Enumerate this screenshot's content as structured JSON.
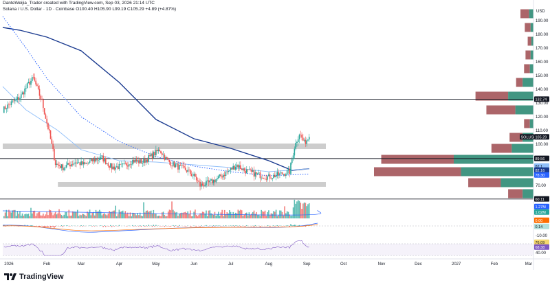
{
  "header": {
    "credit": "DanteWeijia_Trader created with TradingView.com, Sep 03, 2026 21:14 UTC",
    "symbol_line": "Solana / U.S. Dollar · 1D · Coinbase  O100.40  H105.90  L99.19  C105.29  +4.89 (+4.87%)"
  },
  "footer": {
    "brand": "TradingView",
    "logo_icon": "tradingview-logo-icon"
  },
  "colors": {
    "bull": "#26a69a",
    "bear": "#ef5350",
    "sma200": "#1a3a8f",
    "ema_dotted": "#2962ff",
    "sma_light": "#90bff9",
    "vp_up": "#2e8b74",
    "vp_down": "#9e4a4f",
    "zone": "#c8c8c8",
    "rsi_line": "#7e57c2"
  },
  "chart_data": {
    "type": "candlestick",
    "symbol": "Solana / U.S. Dollar · 1D · Coinbase",
    "ohlc_last": {
      "open": 100.4,
      "high": 105.9,
      "low": 99.19,
      "close": 105.29,
      "change": 4.89,
      "change_pct": 4.87
    },
    "x_axis": {
      "ticks": [
        "2026",
        "Feb",
        "Mar",
        "Apr",
        "May",
        "Jun",
        "Jul",
        "Aug",
        "Sep",
        "Oct",
        "Nov",
        "Dec",
        "2027",
        "Feb",
        "Mar"
      ]
    },
    "y_axis": {
      "unit": "USD",
      "ticks": [
        190,
        180,
        170,
        160,
        150,
        140,
        130,
        120,
        110,
        100,
        90,
        80,
        70
      ],
      "ylim": [
        55,
        198
      ]
    },
    "price_path": [
      [
        "2025-12-27",
        125
      ],
      [
        "2026-01-03",
        130
      ],
      [
        "2026-01-10",
        134
      ],
      [
        "2026-01-17",
        144
      ],
      [
        "2026-01-21",
        148
      ],
      [
        "2026-01-28",
        131
      ],
      [
        "2026-02-03",
        108
      ],
      [
        "2026-02-08",
        86
      ],
      [
        "2026-02-14",
        83
      ],
      [
        "2026-02-24",
        87
      ],
      [
        "2026-03-04",
        85
      ],
      [
        "2026-03-10",
        88
      ],
      [
        "2026-03-18",
        90
      ],
      [
        "2026-03-26",
        83
      ],
      [
        "2026-04-04",
        84
      ],
      [
        "2026-04-12",
        88
      ],
      [
        "2026-04-20",
        87
      ],
      [
        "2026-04-28",
        92
      ],
      [
        "2026-05-04",
        96
      ],
      [
        "2026-05-10",
        88
      ],
      [
        "2026-05-18",
        84
      ],
      [
        "2026-05-26",
        81
      ],
      [
        "2026-06-02",
        76
      ],
      [
        "2026-06-06",
        70
      ],
      [
        "2026-06-14",
        72
      ],
      [
        "2026-06-22",
        76
      ],
      [
        "2026-06-30",
        81
      ],
      [
        "2026-07-06",
        85
      ],
      [
        "2026-07-12",
        81
      ],
      [
        "2026-07-22",
        78
      ],
      [
        "2026-08-01",
        76
      ],
      [
        "2026-08-10",
        78
      ],
      [
        "2026-08-18",
        80
      ],
      [
        "2026-08-22",
        98
      ],
      [
        "2026-08-26",
        108
      ],
      [
        "2026-08-30",
        101
      ],
      [
        "2026-09-03",
        105.29
      ]
    ],
    "moving_averages": [
      {
        "style": "solid-dark-blue",
        "current": 82.16,
        "points": [
          [
            "2025-12-27",
            185
          ],
          [
            "2026-01-10",
            183
          ],
          [
            "2026-02-01",
            178
          ],
          [
            "2026-03-01",
            168
          ],
          [
            "2026-04-01",
            145
          ],
          [
            "2026-05-01",
            118
          ],
          [
            "2026-06-01",
            104
          ],
          [
            "2026-07-01",
            97
          ],
          [
            "2026-08-01",
            88
          ],
          [
            "2026-08-20",
            81
          ],
          [
            "2026-09-03",
            82.16
          ]
        ]
      },
      {
        "style": "dotted-blue",
        "current": 78.3,
        "points": [
          [
            "2025-12-27",
            193
          ],
          [
            "2026-01-15",
            170
          ],
          [
            "2026-02-01",
            148
          ],
          [
            "2026-03-01",
            120
          ],
          [
            "2026-04-01",
            102
          ],
          [
            "2026-05-01",
            91
          ],
          [
            "2026-06-01",
            84
          ],
          [
            "2026-07-01",
            80
          ],
          [
            "2026-08-01",
            77
          ],
          [
            "2026-09-03",
            78.3
          ]
        ]
      },
      {
        "style": "solid-light-blue",
        "current": 82.1,
        "points": [
          [
            "2025-12-27",
            142
          ],
          [
            "2026-01-15",
            125
          ],
          [
            "2026-02-10",
            110
          ],
          [
            "2026-03-01",
            96
          ],
          [
            "2026-04-01",
            88
          ],
          [
            "2026-05-01",
            87
          ],
          [
            "2026-06-01",
            85
          ],
          [
            "2026-07-01",
            83
          ],
          [
            "2026-08-01",
            80
          ],
          [
            "2026-09-03",
            82.1
          ]
        ]
      }
    ],
    "horizontal_lines": [
      132.74,
      89.56,
      60.11
    ],
    "zones": [
      {
        "label": "resistance",
        "from": 96.5,
        "to": 100.5,
        "start": "2025-12-27"
      },
      {
        "label": "support",
        "from": 69,
        "to": 72.5,
        "start": "2026-02-10"
      }
    ],
    "volume_profile": [
      {
        "price": 195,
        "up": 6,
        "down": 12
      },
      {
        "price": 185,
        "up": 4,
        "down": 8
      },
      {
        "price": 175,
        "up": 3,
        "down": 5
      },
      {
        "price": 165,
        "up": 4,
        "down": 7
      },
      {
        "price": 155,
        "up": 5,
        "down": 8
      },
      {
        "price": 145,
        "up": 15,
        "down": 9
      },
      {
        "price": 135,
        "up": 35,
        "down": 45
      },
      {
        "price": 125,
        "up": 25,
        "down": 40
      },
      {
        "price": 115,
        "up": 5,
        "down": 8
      },
      {
        "price": 105,
        "up": 15,
        "down": 18
      },
      {
        "price": 97,
        "up": 30,
        "down": 28
      },
      {
        "price": 89,
        "up": 110,
        "down": 100
      },
      {
        "price": 80,
        "up": 100,
        "down": 120
      },
      {
        "price": 72,
        "up": 45,
        "down": 45
      },
      {
        "price": 64,
        "up": 15,
        "down": 20
      }
    ],
    "price_labels": [
      {
        "text": "USD",
        "kind": "unit"
      },
      {
        "text": "132.74",
        "kind": "line-dark"
      },
      {
        "text": "SOLUSD",
        "kind": "symbol"
      },
      {
        "text": "105.29",
        "kind": "last-price"
      },
      {
        "text": "89.56",
        "kind": "line-dark"
      },
      {
        "text": "82.1",
        "kind": "ma-light"
      },
      {
        "text": "82.16",
        "kind": "ma-dark"
      },
      {
        "text": "78.30",
        "kind": "ma-blue"
      },
      {
        "text": "60.11",
        "kind": "line-dark"
      }
    ],
    "volume_labels": [
      "1.27M",
      "1.02M"
    ],
    "macd_labels": [
      "0.00",
      "0.14",
      "-10.00"
    ],
    "rsi_labels": [
      "76.09",
      "68.38",
      "40.00"
    ]
  }
}
